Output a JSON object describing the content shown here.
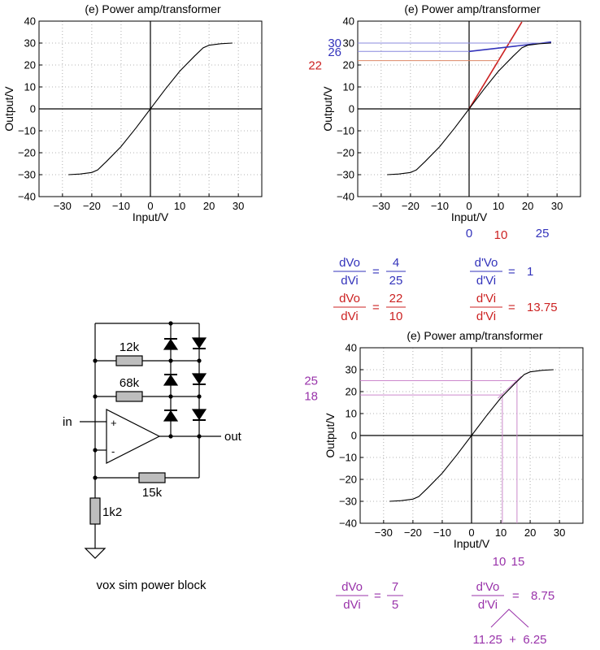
{
  "chart_data": [
    {
      "type": "line",
      "title": "(e) Power amp/transformer",
      "xlabel": "Input/V",
      "ylabel": "Output/V",
      "xlim": [
        -38,
        38
      ],
      "ylim": [
        -40,
        40
      ],
      "xticks": [
        -30,
        -20,
        -10,
        0,
        10,
        20,
        30
      ],
      "yticks": [
        -40,
        -30,
        -20,
        -10,
        0,
        10,
        20,
        30,
        40
      ],
      "grid": true,
      "series": [
        {
          "name": "transfer curve",
          "color": "#000000",
          "x": [
            -28,
            -24,
            -20,
            -18,
            -15,
            -10,
            -5,
            0,
            5,
            10,
            15,
            18,
            20,
            24,
            28
          ],
          "y": [
            -30,
            -29.7,
            -29,
            -27.8,
            -24,
            -17.2,
            -8.8,
            0,
            8.8,
            17.2,
            24,
            27.8,
            29,
            29.7,
            30
          ]
        }
      ]
    },
    {
      "type": "line",
      "title": "(e) Power amp/transformer",
      "xlabel": "Input/V",
      "ylabel": "Output/V",
      "xlim": [
        -38,
        38
      ],
      "ylim": [
        -40,
        40
      ],
      "xticks": [
        -30,
        -20,
        -10,
        0,
        10,
        20,
        30
      ],
      "yticks": [
        -40,
        -30,
        -20,
        -10,
        0,
        10,
        20,
        30,
        40
      ],
      "grid": true,
      "series": [
        {
          "name": "transfer curve",
          "color": "#000000",
          "x": [
            -28,
            -24,
            -20,
            -18,
            -15,
            -10,
            -5,
            0,
            5,
            10,
            15,
            18,
            20,
            24,
            28
          ],
          "y": [
            -30,
            -29.7,
            -29,
            -27.8,
            -24,
            -17.2,
            -8.8,
            0,
            8.8,
            17.2,
            24,
            27.8,
            29,
            29.7,
            30
          ]
        },
        {
          "name": "small-signal slope",
          "color": "#cc2222",
          "x": [
            0,
            18
          ],
          "y": [
            0,
            39.6
          ]
        },
        {
          "name": "saturation slope",
          "color": "#3333bb",
          "x": [
            0,
            28
          ],
          "y": [
            26.2,
            30.5
          ]
        },
        {
          "name": "level 30",
          "color": "#8888dd",
          "x": [
            -38,
            28
          ],
          "y": [
            30,
            30
          ]
        },
        {
          "name": "level 26",
          "color": "#8888dd",
          "x": [
            -38,
            0
          ],
          "y": [
            26.2,
            26.2
          ]
        },
        {
          "name": "level 22",
          "color": "#dd8866",
          "x": [
            -38,
            10
          ],
          "y": [
            22,
            22
          ]
        }
      ],
      "annotations_left": [
        {
          "text": "30",
          "color": "#3333bb",
          "y": 30
        },
        {
          "text": "26",
          "color": "#3333bb",
          "y": 26
        },
        {
          "text": "22",
          "color": "#cc2222",
          "y": 22
        }
      ],
      "annotations_below": [
        {
          "text": "0",
          "color": "#3333bb",
          "x": 0
        },
        {
          "text": "10",
          "color": "#cc2222",
          "x": 10
        },
        {
          "text": "25",
          "color": "#3333bb",
          "x": 25
        }
      ]
    },
    {
      "type": "line",
      "title": "(e) Power amp/transformer",
      "xlabel": "Input/V",
      "ylabel": "Output/V",
      "xlim": [
        -38,
        38
      ],
      "ylim": [
        -40,
        40
      ],
      "xticks": [
        -30,
        -20,
        -10,
        0,
        10,
        20,
        30
      ],
      "yticks": [
        -40,
        -30,
        -20,
        -10,
        0,
        10,
        20,
        30,
        40
      ],
      "grid": true,
      "series": [
        {
          "name": "transfer curve",
          "color": "#000000",
          "x": [
            -28,
            -24,
            -20,
            -18,
            -15,
            -10,
            -5,
            0,
            5,
            10,
            15,
            18,
            20,
            24,
            28
          ],
          "y": [
            -30,
            -29.7,
            -29,
            -27.8,
            -24,
            -17.2,
            -8.8,
            0,
            8.8,
            17.2,
            24,
            27.8,
            29,
            29.7,
            30
          ]
        },
        {
          "name": "level 25",
          "color": "#cc88cc",
          "x": [
            -38,
            16
          ],
          "y": [
            25,
            25
          ]
        },
        {
          "name": "level 18",
          "color": "#cc88cc",
          "x": [
            -38,
            11
          ],
          "y": [
            18.5,
            18.5
          ]
        },
        {
          "name": "input 10",
          "color": "#cc88cc",
          "x": [
            10.5,
            10.5
          ],
          "y": [
            -40,
            18.5
          ]
        },
        {
          "name": "input 15",
          "color": "#cc88cc",
          "x": [
            15.5,
            15.5
          ],
          "y": [
            -40,
            25
          ]
        },
        {
          "name": "local slope",
          "color": "#cc88cc",
          "x": [
            9,
            17
          ],
          "y": [
            17,
            27
          ]
        }
      ],
      "annotations_left": [
        {
          "text": "25",
          "color": "#9933aa",
          "y": 25
        },
        {
          "text": "18",
          "color": "#9933aa",
          "y": 18
        }
      ],
      "annotations_below": [
        {
          "text": "10",
          "color": "#9933aa",
          "x": 10.5
        },
        {
          "text": "15",
          "color": "#9933aa",
          "x": 15.5
        }
      ]
    }
  ],
  "equations": {
    "blue_left": {
      "num": "dVo",
      "den": "dVi",
      "eq": "=",
      "rnum": "4",
      "rden": "25"
    },
    "blue_right": {
      "num": "d'Vo",
      "den": "d'Vi",
      "eq": "=",
      "val": "1"
    },
    "red_left": {
      "num": "dVo",
      "den": "dVi",
      "eq": "=",
      "rnum": "22",
      "rden": "10"
    },
    "red_right": {
      "num": "d'Vi",
      "den": "d'Vi",
      "eq": "=",
      "val": "13.75"
    },
    "purple_left": {
      "num": "dVo",
      "den": "dVi",
      "eq": "=",
      "rnum": "7",
      "rden": "5"
    },
    "purple_right": {
      "num": "d'Vo",
      "den": "d'Vi",
      "eq": "=",
      "val": "8.75"
    },
    "purple_sum": "11.25  +  6.25"
  },
  "colors": {
    "blue": "#3333bb",
    "red": "#cc2222",
    "purple": "#9933aa",
    "black": "#000000"
  },
  "circuit": {
    "caption": "vox sim power block",
    "r1": "12k",
    "r2": "68k",
    "r3": "15k",
    "r4": "1k2",
    "in_label": "in",
    "out_label": "out",
    "plus": "+",
    "minus": "-"
  }
}
